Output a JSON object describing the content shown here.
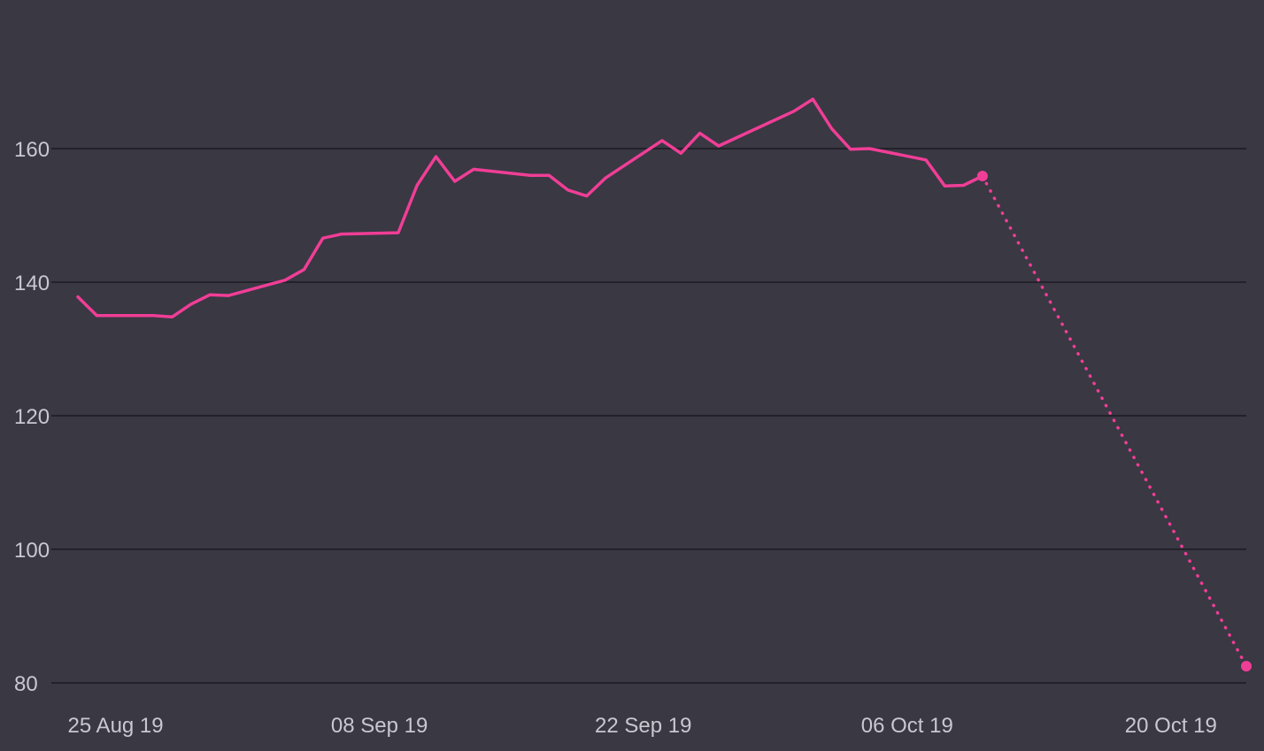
{
  "colors": {
    "background": "#393843",
    "gridline": "#23222a",
    "series": "#f03e96",
    "tick_text": "#c9c8d1"
  },
  "chart_data": {
    "type": "line",
    "title": "",
    "xlabel": "",
    "ylabel": "",
    "grid": true,
    "legend": "none",
    "x_axis": {
      "type": "date",
      "range": [
        "2019-08-23",
        "2019-10-23"
      ],
      "ticks": [
        {
          "date": "2019-08-25",
          "label": "25 Aug 19"
        },
        {
          "date": "2019-09-08",
          "label": "08 Sep 19"
        },
        {
          "date": "2019-09-22",
          "label": "22 Sep 19"
        },
        {
          "date": "2019-10-06",
          "label": "06 Oct 19"
        },
        {
          "date": "2019-10-20",
          "label": "20 Oct 19"
        }
      ]
    },
    "y_axis": {
      "range": [
        78,
        178
      ],
      "ticks": [
        80,
        100,
        120,
        140,
        160
      ]
    },
    "series": [
      {
        "style": "solid",
        "points": [
          {
            "x": "2019-08-23",
            "y": 137.8
          },
          {
            "x": "2019-08-24",
            "y": 135.0
          },
          {
            "x": "2019-08-26",
            "y": 135.0
          },
          {
            "x": "2019-08-27",
            "y": 135.0
          },
          {
            "x": "2019-08-28",
            "y": 134.8
          },
          {
            "x": "2019-08-29",
            "y": 136.7
          },
          {
            "x": "2019-08-30",
            "y": 138.1
          },
          {
            "x": "2019-08-31",
            "y": 138.0
          },
          {
            "x": "2019-09-03",
            "y": 140.3
          },
          {
            "x": "2019-09-04",
            "y": 141.9
          },
          {
            "x": "2019-09-05",
            "y": 146.6
          },
          {
            "x": "2019-09-06",
            "y": 147.2
          },
          {
            "x": "2019-09-09",
            "y": 147.4
          },
          {
            "x": "2019-09-10",
            "y": 154.5
          },
          {
            "x": "2019-09-11",
            "y": 158.8
          },
          {
            "x": "2019-09-12",
            "y": 155.1
          },
          {
            "x": "2019-09-13",
            "y": 156.9
          },
          {
            "x": "2019-09-16",
            "y": 156.0
          },
          {
            "x": "2019-09-17",
            "y": 156.0
          },
          {
            "x": "2019-09-18",
            "y": 153.8
          },
          {
            "x": "2019-09-19",
            "y": 152.9
          },
          {
            "x": "2019-09-20",
            "y": 155.6
          },
          {
            "x": "2019-09-23",
            "y": 161.2
          },
          {
            "x": "2019-09-24",
            "y": 159.3
          },
          {
            "x": "2019-09-25",
            "y": 162.3
          },
          {
            "x": "2019-09-26",
            "y": 160.4
          },
          {
            "x": "2019-09-30",
            "y": 165.6
          },
          {
            "x": "2019-10-01",
            "y": 167.4
          },
          {
            "x": "2019-10-02",
            "y": 163.0
          },
          {
            "x": "2019-10-03",
            "y": 159.9
          },
          {
            "x": "2019-10-04",
            "y": 160.0
          },
          {
            "x": "2019-10-07",
            "y": 158.3
          },
          {
            "x": "2019-10-08",
            "y": 154.4
          },
          {
            "x": "2019-10-09",
            "y": 154.5
          },
          {
            "x": "2019-10-10",
            "y": 155.9
          }
        ]
      },
      {
        "style": "dotted",
        "markers": true,
        "points": [
          {
            "x": "2019-10-10",
            "y": 155.9
          },
          {
            "x": "2019-10-24",
            "y": 82.5
          }
        ]
      }
    ]
  }
}
